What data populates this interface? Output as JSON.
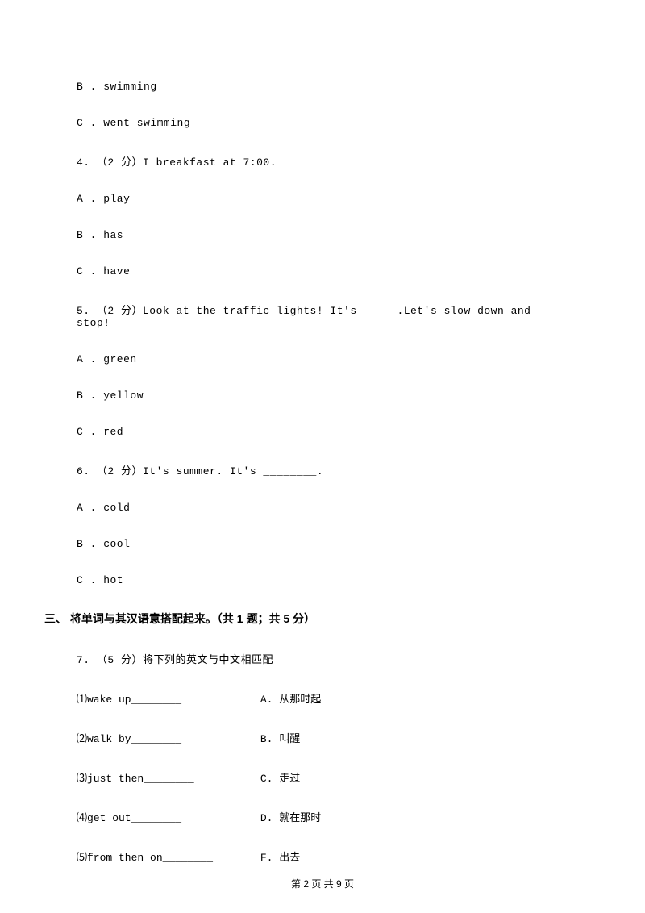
{
  "q3_options": {
    "b": "B . swimming",
    "c": "C . went swimming"
  },
  "q4": {
    "stem": "4. （2 分）I         breakfast at 7:00.",
    "a": "A . play",
    "b": "B . has",
    "c": "C . have"
  },
  "q5": {
    "stem": "5. （2 分）Look at the traffic lights! It's _____.Let's slow down and stop!",
    "a": "A . green",
    "b": "B . yellow",
    "c": "C . red"
  },
  "q6": {
    "stem": "6. （2 分）It's summer. It's ________.",
    "a": "A . cold",
    "b": "B . cool",
    "c": "C . hot"
  },
  "section3": {
    "heading": "三、 将单词与其汉语意搭配起来。（共 1 题；共 5 分）"
  },
  "q7": {
    "stem": "7. （5 分）将下列的英文与中文相匹配",
    "items": [
      {
        "en": "⑴wake up________",
        "cn": "A. 从那时起"
      },
      {
        "en": "⑵walk by________",
        "cn": "B. 叫醒"
      },
      {
        "en": "⑶just then________",
        "cn": "C. 走过"
      },
      {
        "en": "⑷get out________",
        "cn": "D. 就在那时"
      },
      {
        "en": "⑸from then on________",
        "cn": "F. 出去"
      }
    ]
  },
  "footer": "第 2 页 共 9 页"
}
